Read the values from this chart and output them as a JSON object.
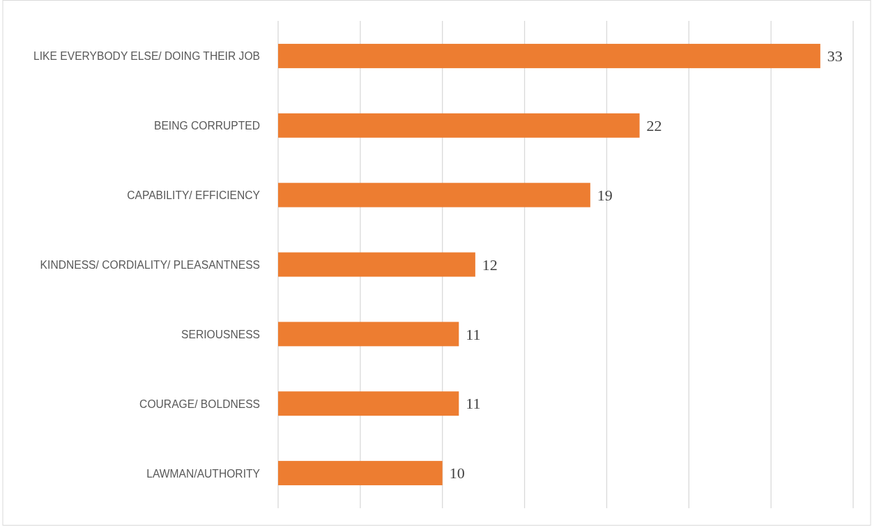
{
  "chart_data": {
    "type": "bar",
    "orientation": "horizontal",
    "categories": [
      "LIKE EVERYBODY ELSE/ DOING THEIR JOB",
      "BEING CORRUPTED",
      "CAPABILITY/ EFFICIENCY",
      "KINDNESS/ CORDIALITY/ PLEASANTNESS",
      "SERIOUSNESS",
      "COURAGE/ BOLDNESS",
      "LAWMAN/AUTHORITY"
    ],
    "values": [
      33,
      22,
      19,
      12,
      11,
      11,
      10
    ],
    "color": "#ed7d31",
    "xlim": [
      0,
      35
    ],
    "xticks": [
      {
        "value": 0,
        "label": null
      },
      {
        "value": 5,
        "label": null
      },
      {
        "value": 10,
        "label": null
      },
      {
        "value": 15,
        "label": null
      },
      {
        "value": 20,
        "label": null
      },
      {
        "value": 25,
        "label": null
      },
      {
        "value": 30,
        "label": null
      },
      {
        "value": 35,
        "label": null
      }
    ],
    "grid": "x",
    "tick_labels": "y",
    "data_labels": true
  }
}
